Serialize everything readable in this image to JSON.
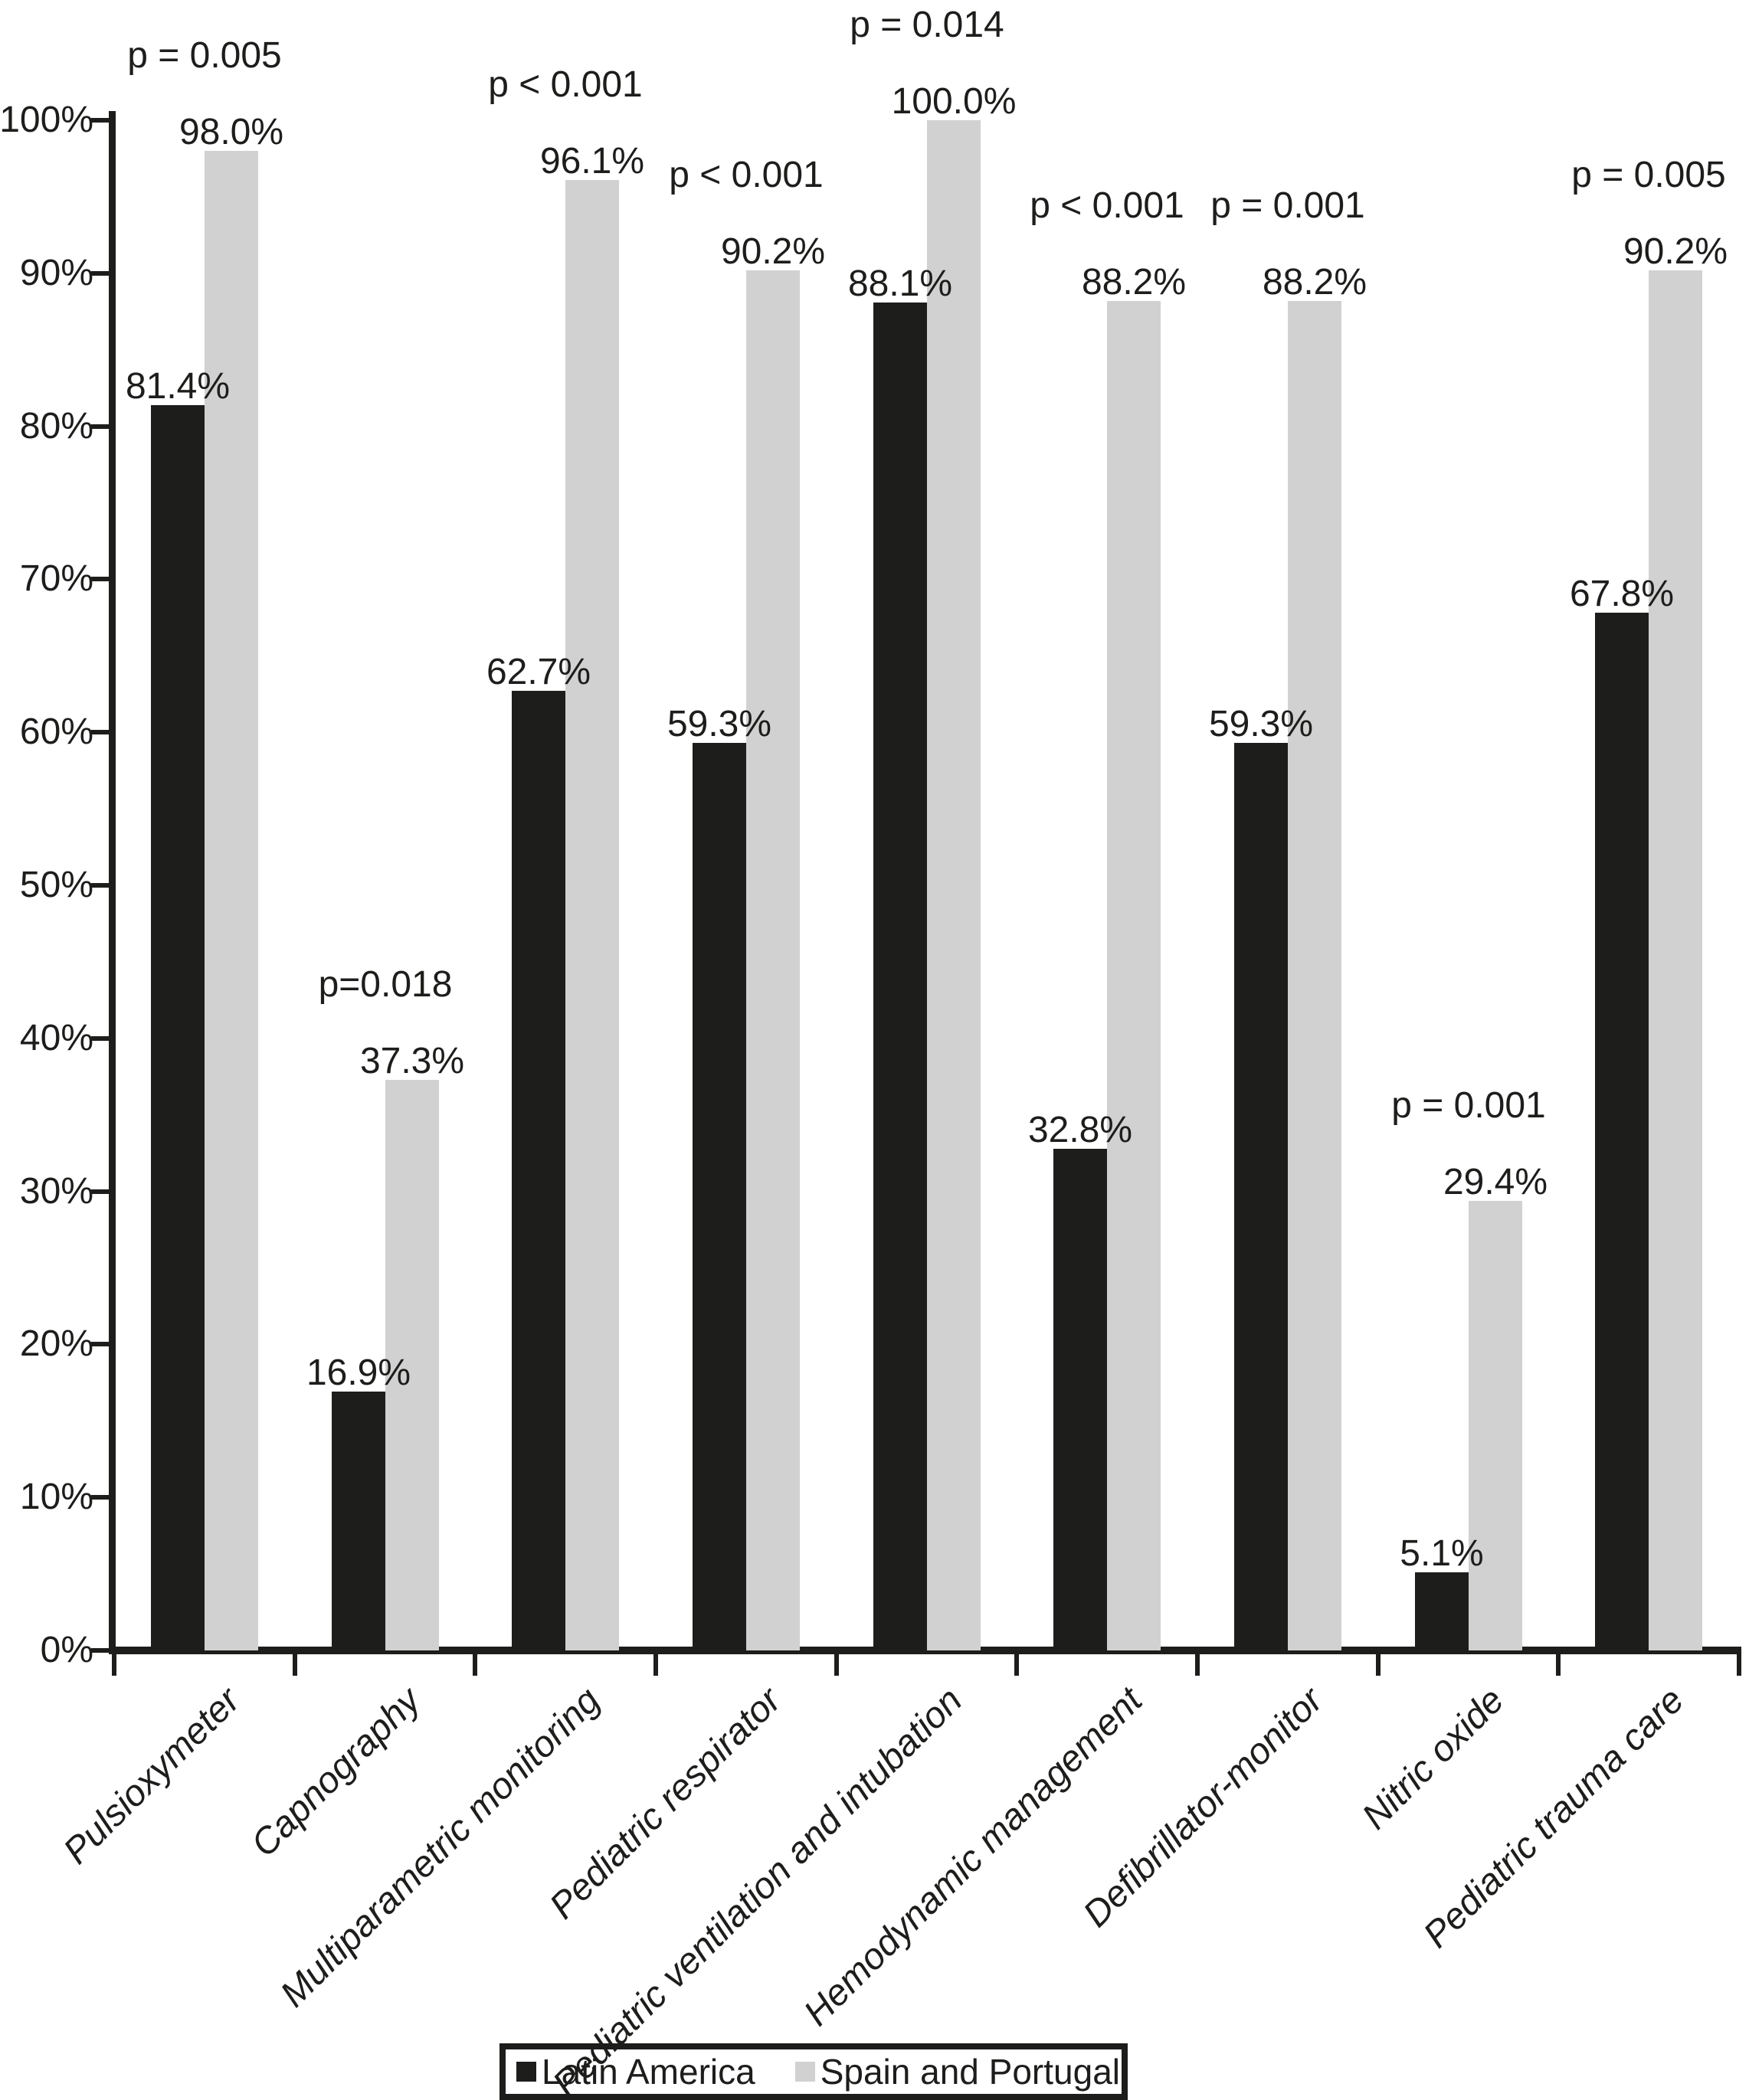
{
  "chart_data": {
    "type": "bar",
    "title": "",
    "xlabel": "",
    "ylabel": "",
    "ylim": [
      0,
      100
    ],
    "grid": false,
    "legend_position": "bottom",
    "background_color": "#ffffff",
    "axis_color": "#1d1d1b",
    "text_color": "#1d1d1b",
    "y_axis": {
      "ticks": [
        "0%",
        "10%",
        "20%",
        "30%",
        "40%",
        "50%",
        "60%",
        "70%",
        "80%",
        "90%",
        "100%"
      ]
    },
    "categories": [
      "Pulsioxymeter",
      "Capnography",
      "Multiparametric monitoring",
      "Pediatric respirator",
      "Pediatric ventilation and intubation",
      "Hemodynamic management",
      "Defibrillator-monitor",
      "Nitric oxide",
      "Pediatric trauma care"
    ],
    "series": [
      {
        "name": "Latin America",
        "color": "#1d1d1b",
        "values": [
          81.4,
          16.9,
          62.7,
          59.3,
          88.1,
          32.8,
          59.3,
          5.1,
          67.8
        ],
        "labels": [
          "81.4%",
          "16.9%",
          "62.7%",
          "59.3%",
          "88.1%",
          "32.8%",
          "59.3%",
          "5.1%",
          "67.8%"
        ]
      },
      {
        "name": "Spain and Portugal",
        "color": "#d1d1d1",
        "values": [
          98.0,
          37.3,
          96.1,
          90.2,
          100.0,
          88.2,
          88.2,
          29.4,
          90.2
        ],
        "labels": [
          "98.0%",
          "37.3%",
          "96.1%",
          "90.2%",
          "100.0%",
          "88.2%",
          "88.2%",
          "29.4%",
          "90.2%"
        ]
      }
    ],
    "p_values": [
      "p = 0.005",
      "p=0.018",
      "p < 0.001",
      "p < 0.001",
      "p = 0.014",
      "p < 0.001",
      "p = 0.001",
      "p = 0.001",
      "p = 0.005"
    ]
  },
  "legend": {
    "items": [
      {
        "label": "Latin America",
        "color": "#1d1d1b"
      },
      {
        "label": "Spain and Portugal",
        "color": "#d1d1d1"
      }
    ]
  }
}
